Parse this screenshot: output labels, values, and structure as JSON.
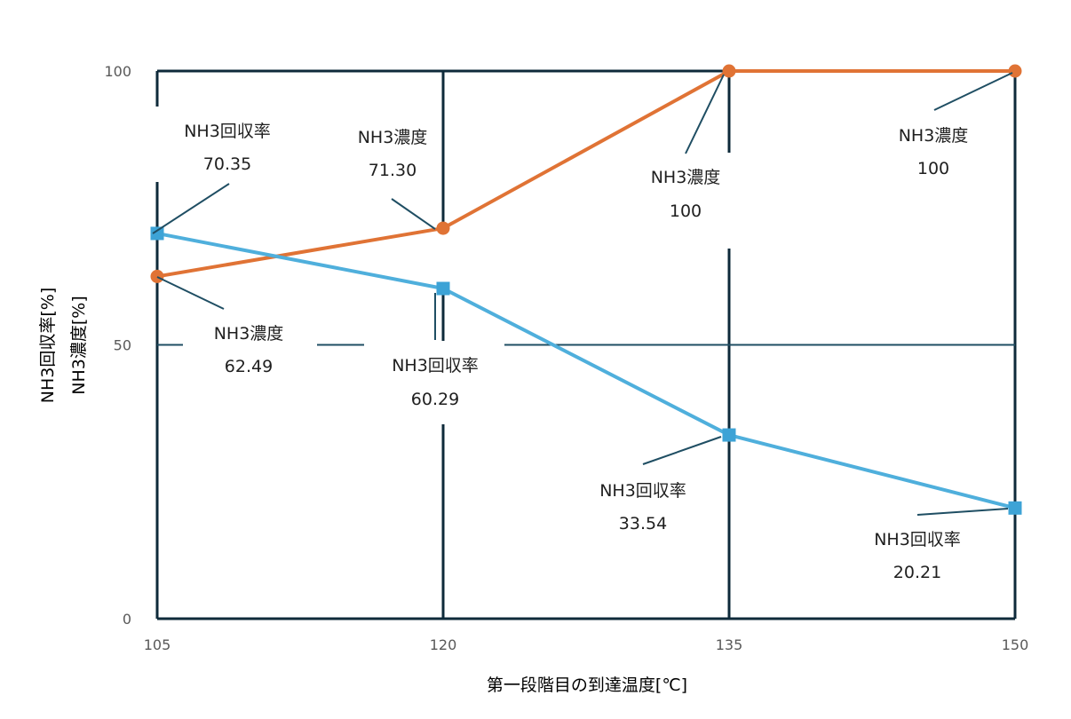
{
  "chart_data": {
    "type": "line",
    "title": "",
    "xlabel": "第一段階目の到達温度[℃]",
    "ylabel_lines": [
      "NH3回収率[%]",
      "NH3濃度[%]"
    ],
    "x": [
      105,
      120,
      135,
      150
    ],
    "x_ticks": [
      "105",
      "120",
      "135",
      "150"
    ],
    "y_ticks": [
      "0",
      "50",
      "100"
    ],
    "ylim": [
      0,
      100
    ],
    "grid": true,
    "legend": "none",
    "series": [
      {
        "key": "concentration",
        "color": "#E07335",
        "marker": "circle",
        "values": [
          62.49,
          71.3,
          100,
          100
        ],
        "labels": [
          {
            "name": "NH3濃度",
            "value": "62.49"
          },
          {
            "name": "NH3濃度",
            "value": "71.30"
          },
          {
            "name": "NH3濃度",
            "value": "100"
          },
          {
            "name": "NH3濃度",
            "value": "100"
          }
        ]
      },
      {
        "key": "recovery",
        "color": "#4FAFDC",
        "marker": "square",
        "values": [
          70.35,
          60.29,
          33.54,
          20.21
        ],
        "labels": [
          {
            "name": "NH3回収率",
            "value": "70.35"
          },
          {
            "name": "NH3回収率",
            "value": "60.29"
          },
          {
            "name": "NH3回収率",
            "value": "33.54"
          },
          {
            "name": "NH3回収率",
            "value": "20.21"
          }
        ]
      }
    ]
  },
  "colors": {
    "frame": "#0E2A3A",
    "leader": "#1F4E63",
    "marker_recovery": "#3DA3D6",
    "marker_concentration": "#E07335"
  }
}
